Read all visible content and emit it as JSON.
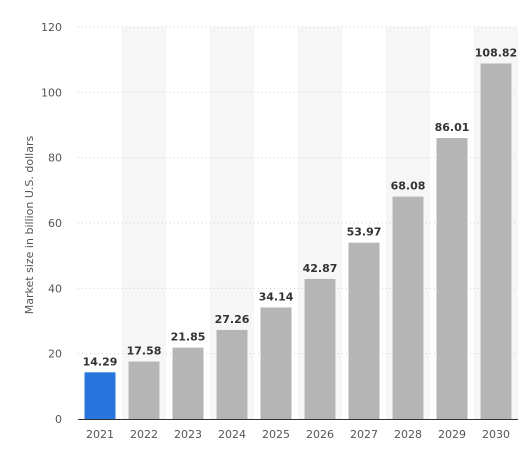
{
  "chart_data": {
    "type": "bar",
    "categories": [
      "2021",
      "2022",
      "2023",
      "2024",
      "2025",
      "2026",
      "2027",
      "2028",
      "2029",
      "2030"
    ],
    "values": [
      14.29,
      17.58,
      21.85,
      27.26,
      34.14,
      42.87,
      53.97,
      68.08,
      86.01,
      108.82
    ],
    "value_labels": [
      "14.29",
      "17.58",
      "21.85",
      "27.26",
      "34.14",
      "42.87",
      "53.97",
      "68.08",
      "86.01",
      "108.82"
    ],
    "title": "",
    "xlabel": "",
    "ylabel": "Market size in billion U.S. dollars",
    "ylim": [
      0,
      120
    ],
    "yticks": [
      "0",
      "20",
      "40",
      "60",
      "80",
      "100",
      "120"
    ],
    "grid": true,
    "colors": {
      "highlight": "#2876dd",
      "bar": "#b5b5b5",
      "band": "#f6f6f6",
      "grid": "#cfcfcf",
      "axis": "#333333"
    },
    "highlight_category": "2021"
  }
}
